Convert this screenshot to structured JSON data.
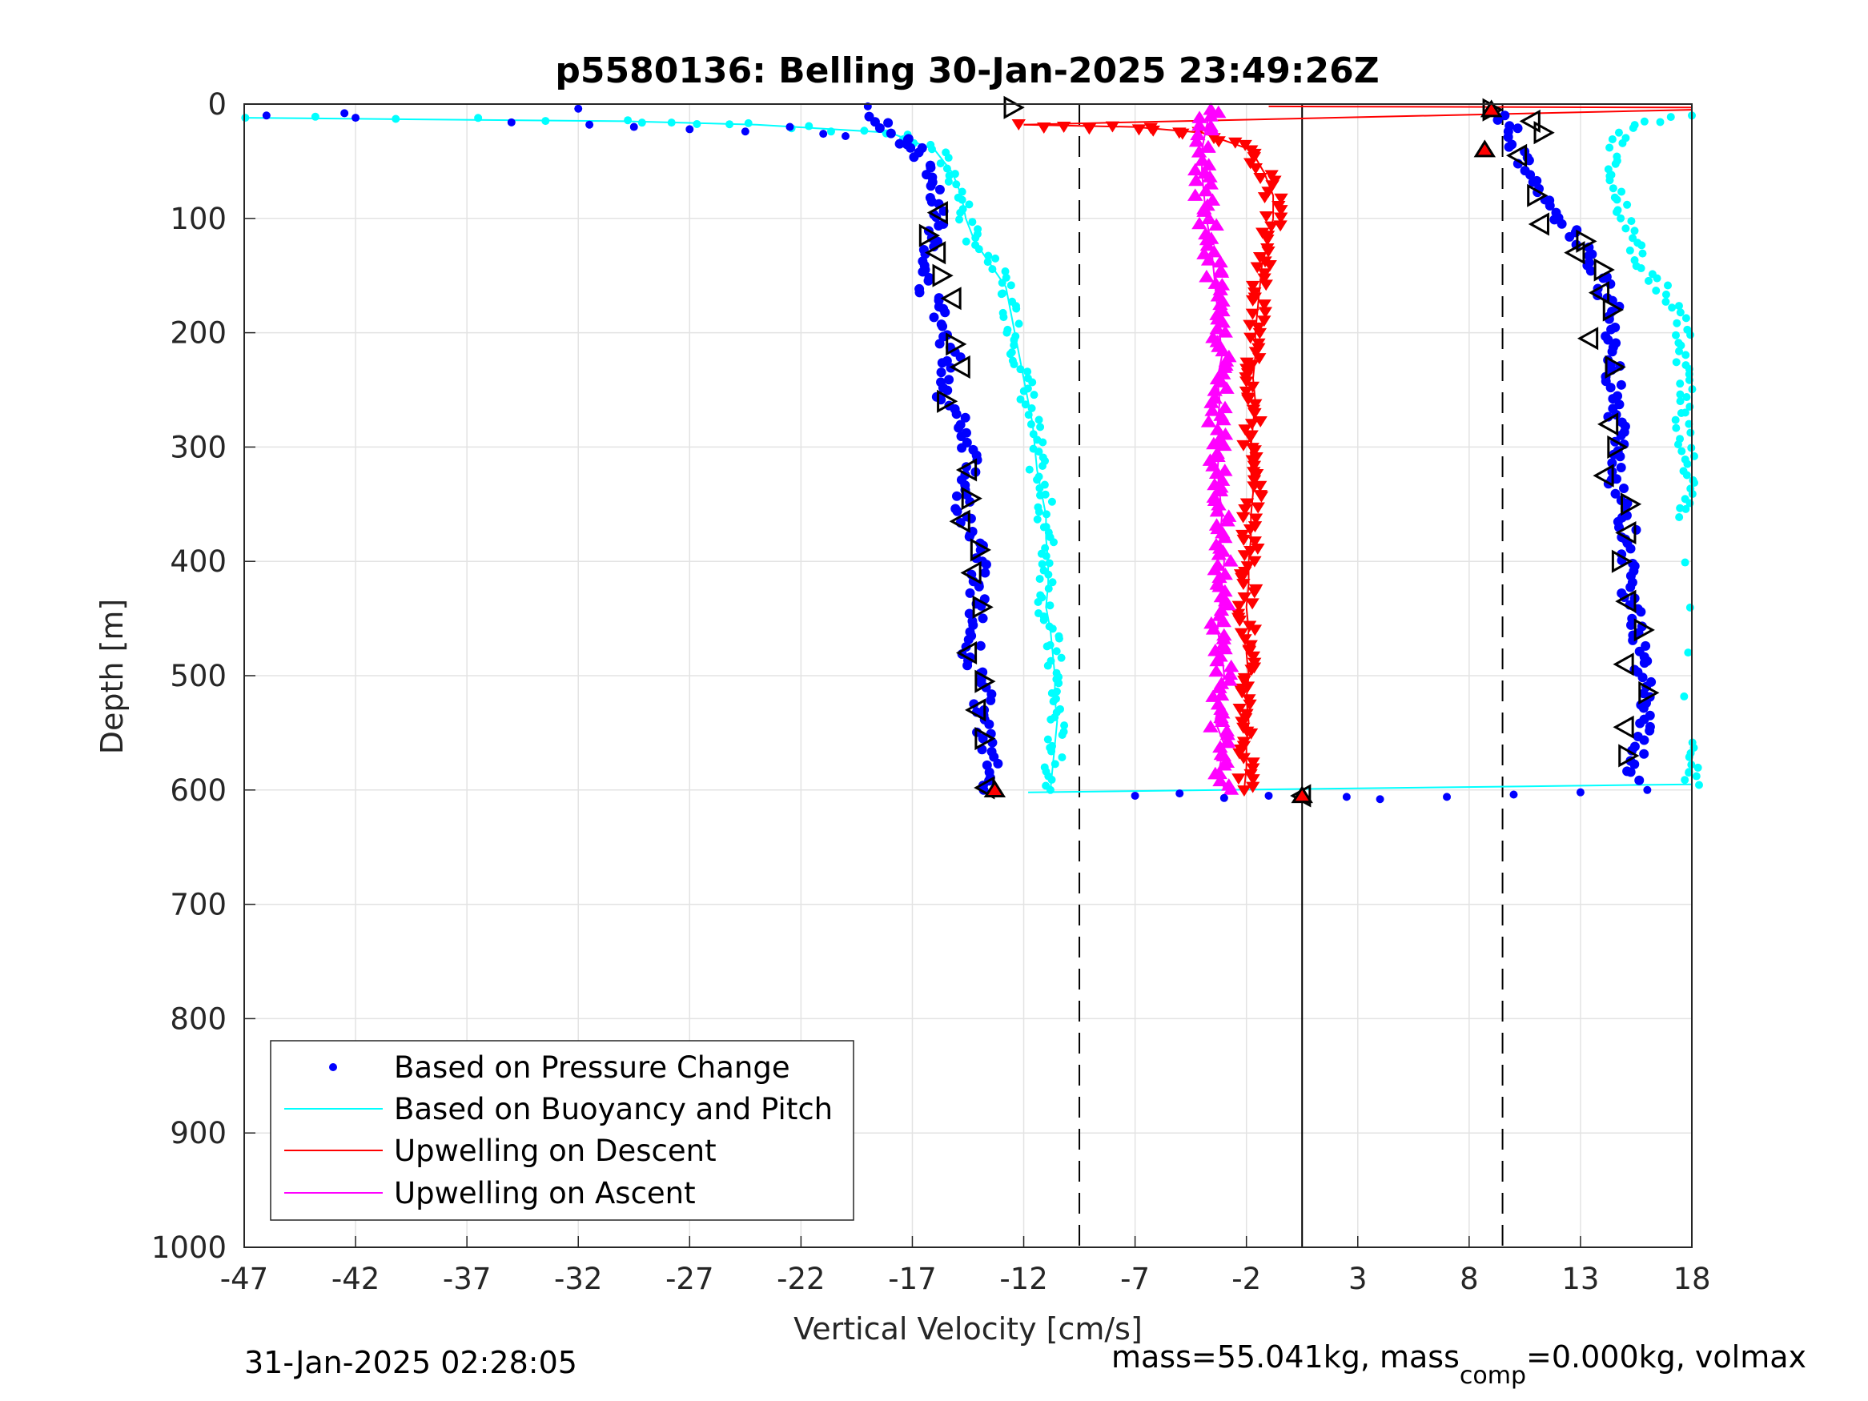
{
  "chart_data": {
    "type": "scatter",
    "title": "p5580136: Belling 30-Jan-2025 23:49:26Z",
    "xlabel": "Vertical Velocity [cm/s]",
    "ylabel": "Depth [m]",
    "xlim": [
      -47,
      18
    ],
    "ylim": [
      1000,
      0
    ],
    "y_reversed": true,
    "grid": true,
    "x_ticks": [
      "-47",
      "-42",
      "-37",
      "-32",
      "-27",
      "-22",
      "-17",
      "-12",
      "-7",
      "-2",
      "3",
      "8",
      "13",
      "18"
    ],
    "y_ticks": [
      "0",
      "100",
      "200",
      "300",
      "400",
      "500",
      "600",
      "700",
      "800",
      "900",
      "1000"
    ],
    "legend": {
      "placement": "bottom-left",
      "entries": [
        {
          "label": "Based on Pressure Change",
          "color": "#0000ff",
          "marker": "dot"
        },
        {
          "label": "Based on Buoyancy and Pitch",
          "color": "#00ffff",
          "marker": "line"
        },
        {
          "label": "Upwelling on Descent",
          "color": "#ff0000",
          "marker": "line"
        },
        {
          "label": "Upwelling on Ascent",
          "color": "#ff00ff",
          "marker": "line"
        }
      ]
    },
    "reference_lines": [
      {
        "x": -9.5,
        "style": "dashed"
      },
      {
        "x": 0.5,
        "style": "solid"
      },
      {
        "x": 9.5,
        "style": "dashed"
      }
    ],
    "series": [
      {
        "name": "Based on Pressure Change",
        "color": "#0000ff",
        "descent": {
          "depth": [
            10,
            30,
            40,
            60,
            80,
            100,
            120,
            140,
            160,
            180,
            200,
            220,
            240,
            260,
            280,
            300,
            320,
            340,
            360,
            380,
            400,
            420,
            440,
            460,
            480,
            500,
            520,
            540,
            560,
            580,
            600
          ],
          "velocity": [
            -19,
            -17.5,
            -16.8,
            -16.3,
            -15.8,
            -15.6,
            -16.2,
            -16.6,
            -16.4,
            -15.8,
            -15.5,
            -15.2,
            -15.4,
            -15.6,
            -14.6,
            -14.4,
            -14.3,
            -14.6,
            -14.8,
            -14.2,
            -14.0,
            -14.1,
            -14.0,
            -14.2,
            -14.4,
            -14.0,
            -13.8,
            -14.0,
            -13.6,
            -13.5,
            -13.8
          ]
        },
        "ascent": {
          "depth": [
            590,
            570,
            550,
            530,
            510,
            490,
            470,
            450,
            430,
            410,
            390,
            370,
            350,
            330,
            310,
            290,
            270,
            250,
            230,
            210,
            190,
            170,
            150,
            130,
            110,
            90,
            70,
            50,
            30,
            10
          ],
          "velocity": [
            15.3,
            15.5,
            15.8,
            16.1,
            16.0,
            15.7,
            15.5,
            15.4,
            15.2,
            15.0,
            15.3,
            15.1,
            14.8,
            14.6,
            14.5,
            14.7,
            14.6,
            14.5,
            14.4,
            14.3,
            14.6,
            14.2,
            13.8,
            13.2,
            12.5,
            11.6,
            11.0,
            10.4,
            10.0,
            9.6
          ]
        },
        "surface_outliers": {
          "depth": [
            10,
            8,
            12,
            16,
            4,
            18,
            20,
            22,
            24,
            20,
            26,
            28,
            2
          ],
          "velocity": [
            -46,
            -42.5,
            -42,
            -35,
            -32,
            -31.5,
            -29.5,
            -27,
            -24.5,
            -22.5,
            -21,
            -20,
            -19
          ]
        },
        "bottom_points": {
          "depth": [
            605,
            603,
            607,
            605,
            604,
            606,
            608,
            606,
            604,
            602,
            600
          ],
          "velocity": [
            -7,
            -5,
            -3,
            -1,
            0.5,
            2.5,
            4,
            7,
            10,
            13,
            16
          ]
        }
      },
      {
        "name": "Based on Buoyancy and Pitch",
        "color": "#00ffff",
        "descent": {
          "depth": [
            12,
            15,
            18,
            25,
            40,
            60,
            80,
            100,
            120,
            140,
            160,
            180,
            200,
            220,
            240,
            260,
            280,
            300,
            320,
            340,
            360,
            380,
            400,
            420,
            440,
            460,
            480,
            500,
            520,
            540,
            560,
            580,
            600
          ],
          "velocity": [
            -47,
            -30,
            -24,
            -18,
            -16,
            -15.2,
            -14.8,
            -14.6,
            -14.2,
            -13.5,
            -12.8,
            -12.6,
            -12.4,
            -12.2,
            -12.0,
            -11.8,
            -11.6,
            -11.5,
            -11.4,
            -11.2,
            -11.0,
            -11.0,
            -10.9,
            -10.9,
            -11.0,
            -10.8,
            -10.7,
            -10.6,
            -10.6,
            -10.5,
            -10.6,
            -10.7,
            -10.8
          ]
        },
        "ascent": {
          "depth": [
            595,
            580,
            560,
            360,
            340,
            320,
            300,
            280,
            260,
            240,
            220,
            200,
            180,
            160,
            140,
            120,
            100,
            80,
            60,
            40,
            20,
            10
          ],
          "velocity": [
            18,
            18,
            17.8,
            17.8,
            17.8,
            17.8,
            17.8,
            17.6,
            17.8,
            17.8,
            17.6,
            17.6,
            17.2,
            16.6,
            15.6,
            15.4,
            15.0,
            14.8,
            14.6,
            14.4,
            15.0,
            18
          ]
        }
      },
      {
        "name": "Upwelling on Descent",
        "color": "#ff0000",
        "depth": [
          18,
          20,
          25,
          40,
          60,
          80,
          100,
          120,
          140,
          160,
          180,
          200,
          220,
          240,
          260,
          280,
          300,
          320,
          340,
          360,
          380,
          400,
          420,
          440,
          460,
          480,
          500,
          520,
          540,
          560,
          580,
          600
        ],
        "velocity": [
          -12,
          -7,
          -4,
          -1.8,
          -1.2,
          -0.8,
          -0.8,
          -1.0,
          -1.3,
          -1.4,
          -1.5,
          -1.6,
          -1.6,
          -1.7,
          -1.6,
          -1.7,
          -1.8,
          -1.8,
          -1.7,
          -1.8,
          -1.8,
          -1.9,
          -1.9,
          -2.0,
          -1.9,
          -2.0,
          -1.9,
          -2.0,
          -1.9,
          -2.0,
          -2.0,
          -2.1
        ]
      },
      {
        "name": "Upwelling on Ascent",
        "color": "#ff00ff",
        "depth": [
          600,
          580,
          560,
          540,
          520,
          500,
          480,
          460,
          440,
          420,
          400,
          380,
          360,
          340,
          320,
          300,
          280,
          260,
          240,
          220,
          200,
          180,
          160,
          140,
          120,
          100,
          80,
          60,
          40,
          20,
          5
        ],
        "velocity": [
          -3.0,
          -3.2,
          -3.0,
          -3.4,
          -3.2,
          -3.0,
          -3.1,
          -3.3,
          -3.2,
          -3.1,
          -3.0,
          -3.2,
          -3.1,
          -3.2,
          -3.3,
          -3.2,
          -3.3,
          -3.2,
          -3.3,
          -3.1,
          -3.2,
          -3.3,
          -3.4,
          -3.5,
          -3.6,
          -3.8,
          -3.9,
          -4.0,
          -4.0,
          -3.8,
          -3.6
        ]
      }
    ],
    "glider_markers": {
      "descent_triangles": {
        "depth": [
          95,
          115,
          130,
          150,
          170,
          210,
          230,
          260,
          320,
          345,
          365,
          390,
          410,
          440,
          480,
          505,
          530,
          555,
          598
        ],
        "velocity": [
          -15.8,
          -16.3,
          -15.9,
          -15.7,
          -15.2,
          -15.1,
          -14.8,
          -15.5,
          -14.5,
          -14.4,
          -14.8,
          -14.0,
          -14.3,
          -13.9,
          -14.5,
          -13.8,
          -14.1,
          -13.8,
          -13.7
        ]
      },
      "ascent_triangles": {
        "depth": [
          5,
          15,
          25,
          45,
          80,
          105,
          120,
          130,
          145,
          165,
          180,
          205,
          230,
          280,
          300,
          325,
          350,
          375,
          400,
          435,
          460,
          490,
          515,
          545,
          570,
          605
        ],
        "velocity": [
          9,
          10.8,
          11.3,
          10.2,
          11.0,
          11.2,
          13.2,
          12.8,
          14.0,
          13.9,
          14.4,
          13.4,
          14.5,
          14.3,
          14.6,
          14.1,
          15.2,
          15.1,
          14.8,
          15.1,
          15.8,
          15.0,
          16.0,
          15.0,
          15.1,
          0.5
        ]
      },
      "surface_marker": {
        "depth": 3,
        "velocity": -12.5
      },
      "red_filled": {
        "depth": [
          5,
          40,
          600,
          605
        ],
        "velocity": [
          9.0,
          8.7,
          -13.3,
          0.5
        ]
      }
    }
  },
  "footer": {
    "left": "31-Jan-2025 02:28:05",
    "right_prefix": "mass=55.041kg, mass",
    "right_sub": "comp",
    "right_suffix": "=0.000kg, volmax"
  }
}
